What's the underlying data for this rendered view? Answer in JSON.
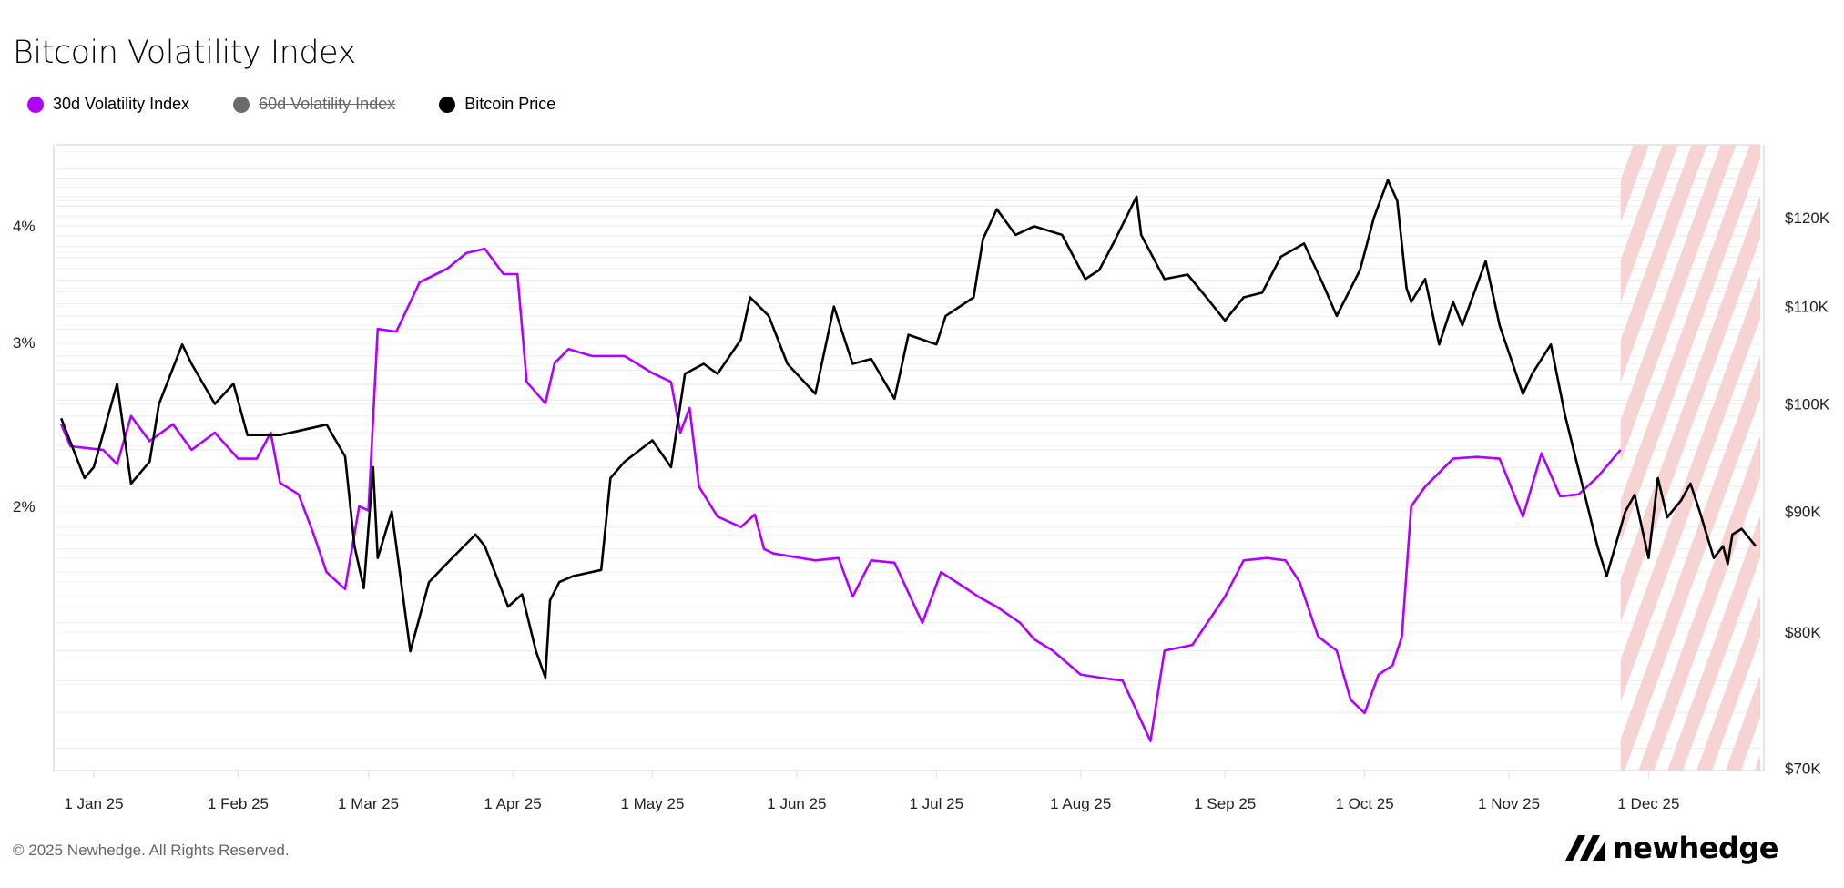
{
  "chart_data": {
    "type": "line",
    "title": "Bitcoin Volatility Index",
    "legend_placement": "top-left",
    "grid": true,
    "x_ticks": [
      {
        "date": "2025-01-01",
        "label": "1 Jan 25"
      },
      {
        "date": "2025-02-01",
        "label": "1 Feb 25"
      },
      {
        "date": "2025-03-01",
        "label": "1 Mar 25"
      },
      {
        "date": "2025-04-01",
        "label": "1 Apr 25"
      },
      {
        "date": "2025-05-01",
        "label": "1 May 25"
      },
      {
        "date": "2025-06-01",
        "label": "1 Jun 25"
      },
      {
        "date": "2025-07-01",
        "label": "1 Jul 25"
      },
      {
        "date": "2025-08-01",
        "label": "1 Aug 25"
      },
      {
        "date": "2025-09-01",
        "label": "1 Sep 25"
      },
      {
        "date": "2025-10-01",
        "label": "1 Oct 25"
      },
      {
        "date": "2025-11-01",
        "label": "1 Nov 25"
      },
      {
        "date": "2025-12-01",
        "label": "1 Dec 25"
      }
    ],
    "xlim": [
      "2024-12-25",
      "2025-12-26"
    ],
    "left_axis": {
      "scale": "log",
      "unit": "%",
      "ticks": [
        {
          "value": 4,
          "label": "4%"
        },
        {
          "value": 3,
          "label": "3%"
        },
        {
          "value": 2,
          "label": "2%"
        }
      ],
      "range": [
        1.05,
        4.6
      ]
    },
    "right_axis": {
      "scale": "log",
      "unit": "USD",
      "ticks": [
        {
          "value": 120000,
          "label": "$120K"
        },
        {
          "value": 110000,
          "label": "$110K"
        },
        {
          "value": 100000,
          "label": "$100K"
        },
        {
          "value": 90000,
          "label": "$90K"
        },
        {
          "value": 80000,
          "label": "$80K"
        },
        {
          "value": 70000,
          "label": "$70K"
        }
      ],
      "range": [
        69800,
        128000
      ]
    },
    "hatched_region": {
      "from": "2025-11-25",
      "to": "2025-12-26",
      "color": "#f6d4d4"
    },
    "series": [
      {
        "name": "30d Volatility Index",
        "color": "#b000ff",
        "axis": "left",
        "visible": true,
        "points": [
          [
            "2024-12-25",
            2.45
          ],
          [
            "2024-12-27",
            2.32
          ],
          [
            "2025-01-03",
            2.3
          ],
          [
            "2025-01-06",
            2.22
          ],
          [
            "2025-01-09",
            2.5
          ],
          [
            "2025-01-13",
            2.35
          ],
          [
            "2025-01-18",
            2.45
          ],
          [
            "2025-01-22",
            2.3
          ],
          [
            "2025-01-27",
            2.4
          ],
          [
            "2025-02-01",
            2.25
          ],
          [
            "2025-02-05",
            2.25
          ],
          [
            "2025-02-08",
            2.4
          ],
          [
            "2025-02-10",
            2.12
          ],
          [
            "2025-02-14",
            2.06
          ],
          [
            "2025-02-17",
            1.88
          ],
          [
            "2025-02-20",
            1.7
          ],
          [
            "2025-02-24",
            1.63
          ],
          [
            "2025-02-27",
            2.0
          ],
          [
            "2025-03-01",
            1.98
          ],
          [
            "2025-03-03",
            3.1
          ],
          [
            "2025-03-07",
            3.08
          ],
          [
            "2025-03-12",
            3.48
          ],
          [
            "2025-03-18",
            3.6
          ],
          [
            "2025-03-22",
            3.74
          ],
          [
            "2025-03-26",
            3.78
          ],
          [
            "2025-03-30",
            3.55
          ],
          [
            "2025-04-02",
            3.55
          ],
          [
            "2025-04-04",
            2.72
          ],
          [
            "2025-04-08",
            2.58
          ],
          [
            "2025-04-10",
            2.85
          ],
          [
            "2025-04-13",
            2.95
          ],
          [
            "2025-04-18",
            2.9
          ],
          [
            "2025-04-25",
            2.9
          ],
          [
            "2025-05-01",
            2.78
          ],
          [
            "2025-05-05",
            2.72
          ],
          [
            "2025-05-07",
            2.4
          ],
          [
            "2025-05-09",
            2.55
          ],
          [
            "2025-05-11",
            2.1
          ],
          [
            "2025-05-15",
            1.95
          ],
          [
            "2025-05-20",
            1.9
          ],
          [
            "2025-05-23",
            1.96
          ],
          [
            "2025-05-25",
            1.8
          ],
          [
            "2025-05-27",
            1.78
          ],
          [
            "2025-06-05",
            1.75
          ],
          [
            "2025-06-10",
            1.76
          ],
          [
            "2025-06-13",
            1.6
          ],
          [
            "2025-06-17",
            1.75
          ],
          [
            "2025-06-22",
            1.74
          ],
          [
            "2025-06-28",
            1.5
          ],
          [
            "2025-07-02",
            1.7
          ],
          [
            "2025-07-06",
            1.65
          ],
          [
            "2025-07-10",
            1.6
          ],
          [
            "2025-07-14",
            1.56
          ],
          [
            "2025-07-19",
            1.5
          ],
          [
            "2025-07-22",
            1.44
          ],
          [
            "2025-07-26",
            1.4
          ],
          [
            "2025-08-01",
            1.32
          ],
          [
            "2025-08-05",
            1.31
          ],
          [
            "2025-08-10",
            1.3
          ],
          [
            "2025-08-16",
            1.12
          ],
          [
            "2025-08-19",
            1.4
          ],
          [
            "2025-08-25",
            1.42
          ],
          [
            "2025-09-01",
            1.6
          ],
          [
            "2025-09-05",
            1.75
          ],
          [
            "2025-09-10",
            1.76
          ],
          [
            "2025-09-14",
            1.75
          ],
          [
            "2025-09-17",
            1.66
          ],
          [
            "2025-09-21",
            1.45
          ],
          [
            "2025-09-25",
            1.4
          ],
          [
            "2025-09-28",
            1.24
          ],
          [
            "2025-10-01",
            1.2
          ],
          [
            "2025-10-04",
            1.32
          ],
          [
            "2025-10-07",
            1.35
          ],
          [
            "2025-10-09",
            1.45
          ],
          [
            "2025-10-11",
            2.0
          ],
          [
            "2025-10-14",
            2.1
          ],
          [
            "2025-10-20",
            2.25
          ],
          [
            "2025-10-25",
            2.26
          ],
          [
            "2025-10-30",
            2.25
          ],
          [
            "2025-11-04",
            1.95
          ],
          [
            "2025-11-08",
            2.28
          ],
          [
            "2025-11-12",
            2.05
          ],
          [
            "2025-11-16",
            2.06
          ],
          [
            "2025-11-20",
            2.15
          ],
          [
            "2025-11-25",
            2.3
          ]
        ]
      },
      {
        "name": "60d Volatility Index",
        "color": "#6b6b6b",
        "axis": "left",
        "visible": false,
        "points": []
      },
      {
        "name": "Bitcoin Price",
        "color": "#000000",
        "axis": "right",
        "visible": true,
        "points": [
          [
            "2024-12-25",
            98600
          ],
          [
            "2024-12-30",
            93000
          ],
          [
            "2025-01-01",
            94000
          ],
          [
            "2025-01-06",
            102000
          ],
          [
            "2025-01-09",
            92500
          ],
          [
            "2025-01-13",
            94500
          ],
          [
            "2025-01-15",
            100000
          ],
          [
            "2025-01-20",
            106000
          ],
          [
            "2025-01-22",
            104000
          ],
          [
            "2025-01-27",
            100000
          ],
          [
            "2025-01-31",
            102000
          ],
          [
            "2025-02-03",
            97000
          ],
          [
            "2025-02-10",
            97000
          ],
          [
            "2025-02-20",
            98000
          ],
          [
            "2025-02-24",
            95000
          ],
          [
            "2025-02-26",
            87000
          ],
          [
            "2025-02-28",
            83500
          ],
          [
            "2025-03-02",
            94000
          ],
          [
            "2025-03-03",
            86000
          ],
          [
            "2025-03-06",
            90000
          ],
          [
            "2025-03-10",
            78500
          ],
          [
            "2025-03-14",
            84000
          ],
          [
            "2025-03-19",
            86000
          ],
          [
            "2025-03-24",
            88000
          ],
          [
            "2025-03-26",
            87000
          ],
          [
            "2025-03-31",
            82000
          ],
          [
            "2025-04-03",
            83000
          ],
          [
            "2025-04-06",
            78500
          ],
          [
            "2025-04-08",
            76500
          ],
          [
            "2025-04-09",
            82500
          ],
          [
            "2025-04-11",
            84000
          ],
          [
            "2025-04-14",
            84500
          ],
          [
            "2025-04-20",
            85000
          ],
          [
            "2025-04-22",
            93000
          ],
          [
            "2025-04-25",
            94500
          ],
          [
            "2025-05-01",
            96500
          ],
          [
            "2025-05-05",
            94000
          ],
          [
            "2025-05-08",
            103000
          ],
          [
            "2025-05-12",
            104000
          ],
          [
            "2025-05-15",
            103000
          ],
          [
            "2025-05-20",
            106500
          ],
          [
            "2025-05-22",
            111000
          ],
          [
            "2025-05-26",
            109000
          ],
          [
            "2025-05-30",
            104000
          ],
          [
            "2025-06-05",
            101000
          ],
          [
            "2025-06-09",
            110000
          ],
          [
            "2025-06-13",
            104000
          ],
          [
            "2025-06-17",
            104500
          ],
          [
            "2025-06-22",
            100500
          ],
          [
            "2025-06-25",
            107000
          ],
          [
            "2025-07-01",
            106000
          ],
          [
            "2025-07-03",
            109000
          ],
          [
            "2025-07-09",
            111000
          ],
          [
            "2025-07-11",
            117500
          ],
          [
            "2025-07-14",
            121000
          ],
          [
            "2025-07-18",
            118000
          ],
          [
            "2025-07-22",
            119000
          ],
          [
            "2025-07-28",
            118000
          ],
          [
            "2025-08-02",
            113000
          ],
          [
            "2025-08-05",
            114000
          ],
          [
            "2025-08-08",
            117000
          ],
          [
            "2025-08-13",
            122500
          ],
          [
            "2025-08-14",
            118000
          ],
          [
            "2025-08-19",
            113000
          ],
          [
            "2025-08-24",
            113500
          ],
          [
            "2025-08-28",
            111000
          ],
          [
            "2025-09-01",
            108500
          ],
          [
            "2025-09-05",
            111000
          ],
          [
            "2025-09-09",
            111500
          ],
          [
            "2025-09-13",
            115500
          ],
          [
            "2025-09-18",
            117000
          ],
          [
            "2025-09-22",
            112500
          ],
          [
            "2025-09-25",
            109000
          ],
          [
            "2025-09-30",
            114000
          ],
          [
            "2025-10-03",
            120000
          ],
          [
            "2025-10-06",
            124500
          ],
          [
            "2025-10-08",
            122000
          ],
          [
            "2025-10-10",
            112000
          ],
          [
            "2025-10-11",
            110500
          ],
          [
            "2025-10-14",
            113000
          ],
          [
            "2025-10-17",
            106000
          ],
          [
            "2025-10-20",
            110500
          ],
          [
            "2025-10-22",
            108000
          ],
          [
            "2025-10-27",
            115000
          ],
          [
            "2025-10-30",
            108000
          ],
          [
            "2025-11-04",
            101000
          ],
          [
            "2025-11-06",
            103000
          ],
          [
            "2025-11-10",
            106000
          ],
          [
            "2025-11-13",
            99000
          ],
          [
            "2025-11-17",
            92000
          ],
          [
            "2025-11-20",
            87000
          ],
          [
            "2025-11-22",
            84500
          ],
          [
            "2025-11-26",
            90000
          ],
          [
            "2025-11-28",
            91500
          ],
          [
            "2025-12-01",
            86000
          ],
          [
            "2025-12-03",
            93000
          ],
          [
            "2025-12-05",
            89500
          ],
          [
            "2025-12-08",
            91000
          ],
          [
            "2025-12-10",
            92500
          ],
          [
            "2025-12-12",
            90000
          ],
          [
            "2025-12-15",
            86000
          ],
          [
            "2025-12-17",
            87000
          ],
          [
            "2025-12-18",
            85500
          ],
          [
            "2025-12-19",
            88000
          ],
          [
            "2025-12-21",
            88500
          ],
          [
            "2025-12-23",
            87500
          ],
          [
            "2025-12-24",
            87000
          ]
        ]
      }
    ]
  },
  "footer": {
    "copyright": "© 2025 Newhedge. All Rights Reserved."
  },
  "brand": {
    "name": "newhedge"
  }
}
